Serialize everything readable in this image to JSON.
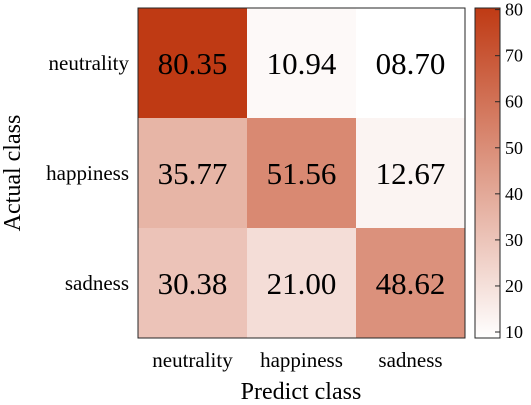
{
  "chart_data": {
    "type": "heatmap",
    "x_categories": [
      "neutrality",
      "happiness",
      "sadness"
    ],
    "y_categories": [
      "neutrality",
      "happiness",
      "sadness"
    ],
    "values": [
      [
        80.35,
        10.94,
        8.7
      ],
      [
        35.77,
        51.56,
        12.67
      ],
      [
        30.38,
        21.0,
        48.62
      ]
    ],
    "value_labels": [
      [
        "80.35",
        "10.94",
        "08.70"
      ],
      [
        "35.77",
        "51.56",
        "12.67"
      ],
      [
        "30.38",
        "21.00",
        "48.62"
      ]
    ],
    "xlabel": "Predict class",
    "ylabel": "Actual class",
    "colorbar": {
      "range": [
        8.7,
        80.35
      ],
      "ticks": [
        10,
        20,
        30,
        40,
        50,
        60,
        70,
        80
      ],
      "colors": [
        "#ffffff",
        "#bf3a14"
      ]
    }
  }
}
